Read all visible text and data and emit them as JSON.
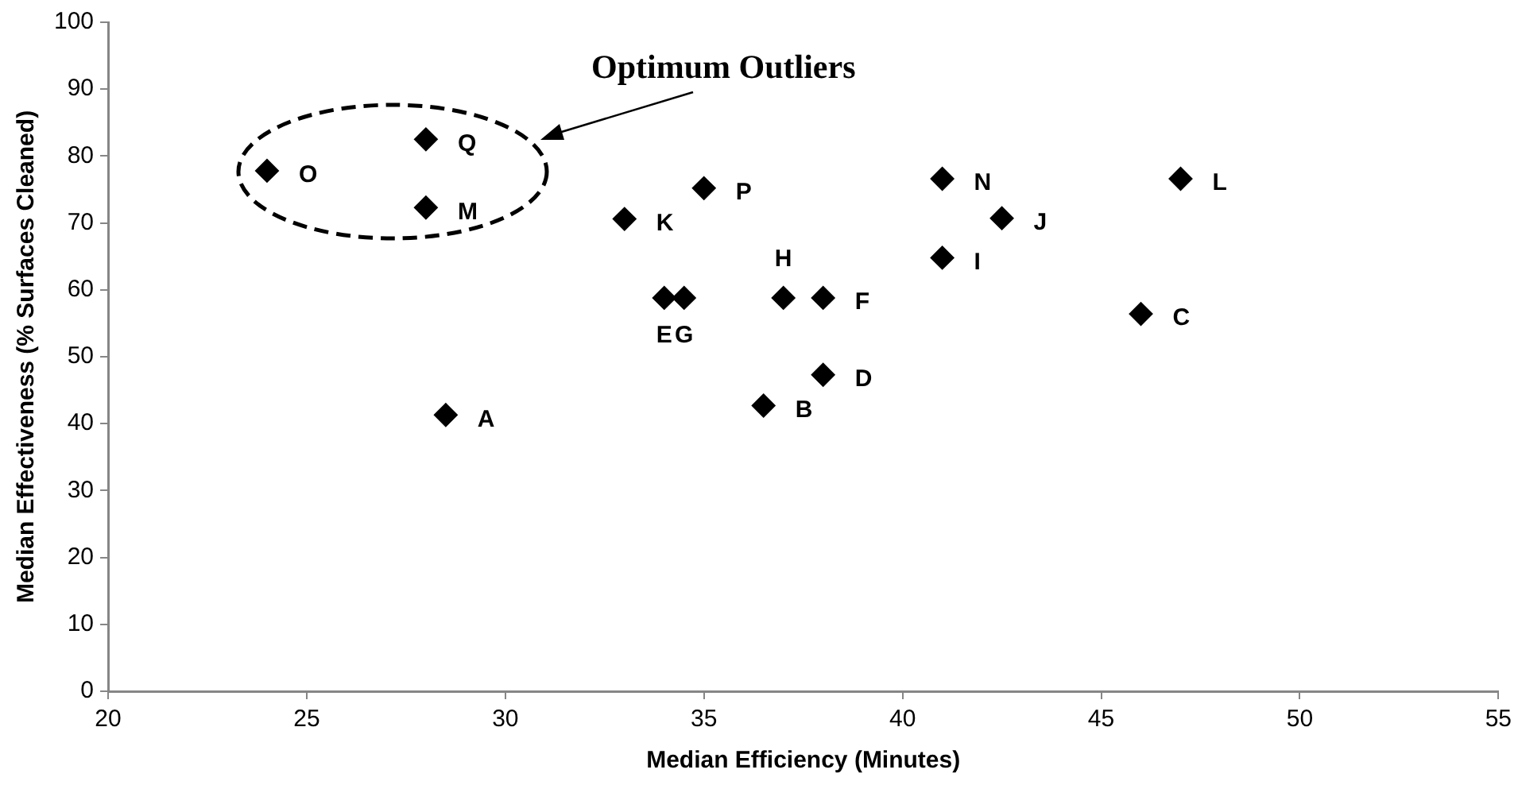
{
  "chart_data": {
    "type": "scatter",
    "xlabel": "Median Efficiency (Minutes)",
    "ylabel": "Median Effectiveness (% Surfaces Cleaned)",
    "x": [
      28.5,
      36.5,
      46,
      38,
      34,
      38,
      34.5,
      37,
      41,
      42.5,
      33,
      47,
      28,
      41,
      24,
      35,
      28
    ],
    "values": [
      41.3,
      42.7,
      56.4,
      47.3,
      58.8,
      58.8,
      58.8,
      58.8,
      64.8,
      70.7,
      70.6,
      76.6,
      72.3,
      76.6,
      77.8,
      75.2,
      82.5
    ],
    "color": "#000000",
    "marker": "diamond",
    "grid": false,
    "legend": false,
    "xlim": [
      20,
      55
    ],
    "xticks": [
      20,
      25,
      30,
      35,
      40,
      45,
      50,
      55
    ],
    "ylim": [
      0,
      100
    ],
    "yticks": [
      0,
      10,
      20,
      30,
      40,
      50,
      60,
      70,
      80,
      90,
      100
    ],
    "annotations": [
      "Optimum Outliers",
      {
        "text": "A",
        "x": 28.5,
        "y": 41.3
      },
      {
        "text": "B",
        "x": 36.5,
        "y": 42.7
      },
      {
        "text": "C",
        "x": 46,
        "y": 56.4
      },
      {
        "text": "D",
        "x": 38,
        "y": 47.3
      },
      {
        "text": "E",
        "x": 34,
        "y": 58.8
      },
      {
        "text": "F",
        "x": 38,
        "y": 58.8
      },
      {
        "text": "G",
        "x": 34.5,
        "y": 58.8
      },
      {
        "text": "H",
        "x": 37,
        "y": 58.8
      },
      {
        "text": "I",
        "x": 41,
        "y": 64.8
      },
      {
        "text": "J",
        "x": 42.5,
        "y": 70.7
      },
      {
        "text": "K",
        "x": 33,
        "y": 70.6
      },
      {
        "text": "L",
        "x": 47,
        "y": 76.6
      },
      {
        "text": "M",
        "x": 28,
        "y": 72.3
      },
      {
        "text": "N",
        "x": 41,
        "y": 76.6
      },
      {
        "text": "O",
        "x": 24,
        "y": 77.8
      },
      {
        "text": "P",
        "x": 35,
        "y": 75.2
      },
      {
        "text": "Q",
        "x": 28,
        "y": 82.5
      }
    ]
  }
}
